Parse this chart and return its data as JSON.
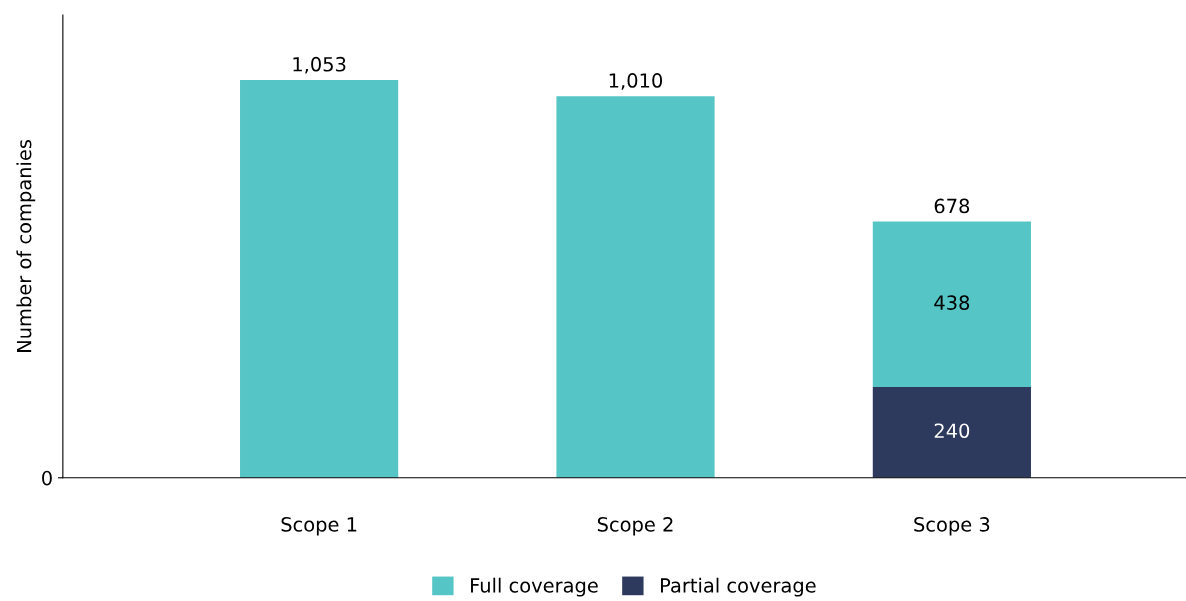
{
  "chart_data": {
    "type": "bar",
    "stacked": true,
    "ylabel": "Number of companies",
    "categories": [
      "Scope 1",
      "Scope 2",
      "Scope 3"
    ],
    "series": [
      {
        "name": "Partial coverage",
        "color": "#2d3a5e",
        "values": [
          null,
          null,
          240
        ],
        "value_labels": [
          null,
          null,
          "240"
        ]
      },
      {
        "name": "Full coverage",
        "color": "#56c5c5",
        "values": [
          1053,
          1010,
          438
        ],
        "value_labels": [
          "1,053",
          "1,010",
          "438"
        ]
      }
    ],
    "totals": [
      null,
      null,
      "678"
    ],
    "annotations": [
      "0"
    ],
    "legend": "bottom"
  }
}
